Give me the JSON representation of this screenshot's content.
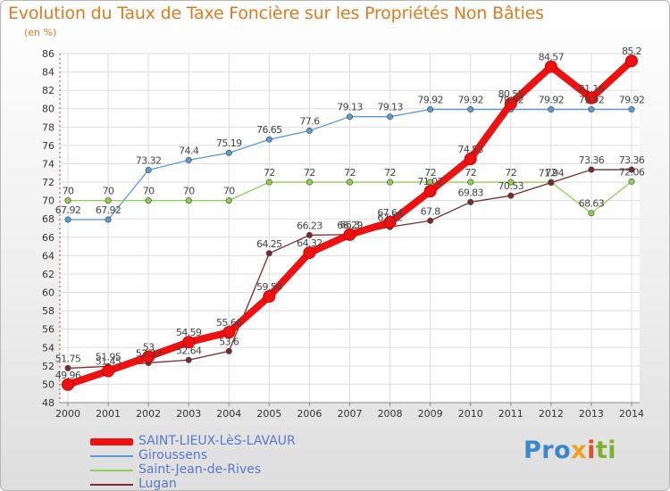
{
  "title": "Evolution du Taux de Taxe Foncière sur les Propriétés Non Bâties",
  "unit_label": "(en %)",
  "brand": {
    "text": "Proxiti",
    "part1": "Pro",
    "part2": "x",
    "part3": "i",
    "part4": "ti"
  },
  "chart_data": {
    "type": "line",
    "x": [
      "2000",
      "2001",
      "2002",
      "2003",
      "2004",
      "2005",
      "2006",
      "2007",
      "2008",
      "2009",
      "2010",
      "2011",
      "2012",
      "2013",
      "2014"
    ],
    "ylim": [
      48,
      86
    ],
    "yticks": [
      48,
      50,
      52,
      54,
      56,
      58,
      60,
      62,
      64,
      66,
      68,
      70,
      72,
      74,
      76,
      78,
      80,
      82,
      84,
      86
    ],
    "grid": true,
    "legend": "bottom-left",
    "series": [
      {
        "name": "SAINT-LIEUX-LèS-LAVAUR",
        "color": "#ee1111",
        "values": [
          49.96,
          51.45,
          53,
          54.59,
          55.66,
          59.56,
          64.32,
          66.29,
          67.64,
          71.02,
          74.53,
          80.55,
          84.57,
          81.16,
          85.2
        ],
        "labels": [
          "49.96",
          "51.45",
          "53",
          "54.59",
          "55.66",
          "59.56",
          "64.32",
          "66.29",
          "67.64",
          "71.02",
          "74.53",
          "80.55",
          "84.57",
          "81.16",
          "85.2"
        ]
      },
      {
        "name": "Giroussens",
        "color": "#5b9bd5",
        "values": [
          67.92,
          67.92,
          73.32,
          74.4,
          75.19,
          76.65,
          77.6,
          79.13,
          79.13,
          79.92,
          79.92,
          79.92,
          79.92,
          79.92,
          79.92
        ],
        "labels": [
          "67.92",
          "67.92",
          "73.32",
          "74.4",
          "75.19",
          "76.65",
          "77.6",
          "79.13",
          "79.13",
          "79.92",
          "79.92",
          "79.92",
          "79.92",
          "79.92",
          "79.92"
        ]
      },
      {
        "name": "Saint-Jean-de-Rives",
        "color": "#8fd14f",
        "values": [
          70,
          70,
          70,
          70,
          70,
          72,
          72,
          72,
          72,
          72,
          72,
          72,
          72,
          68.63,
          72.06
        ],
        "labels": [
          "70",
          "70",
          "70",
          "70",
          "70",
          "72",
          "72",
          "72",
          "72",
          "72",
          "72",
          "72",
          "72",
          "68.63",
          "72.06"
        ]
      },
      {
        "name": "Lugan",
        "color": "#7a2b2b",
        "values": [
          51.75,
          51.95,
          52.33,
          52.64,
          53.6,
          64.25,
          66.23,
          66.3,
          67.12,
          67.8,
          69.83,
          70.53,
          71.94,
          73.36,
          73.36
        ],
        "labels": [
          "51.75",
          "51.95",
          "52.33",
          "52.64",
          "53.6",
          "64.25",
          "66.23",
          "66.3",
          "67.12",
          "67.8",
          "69.83",
          "70.53",
          "71.94",
          "73.36",
          "73.36"
        ]
      }
    ]
  }
}
